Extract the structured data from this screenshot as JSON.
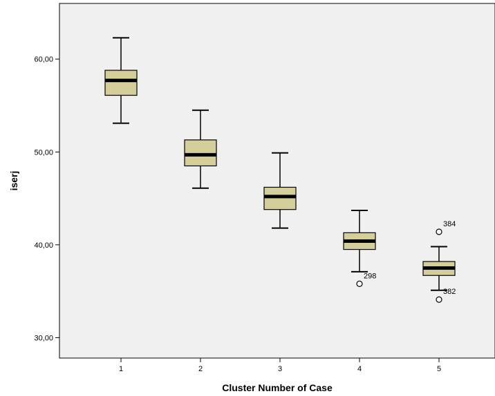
{
  "chart_data": {
    "type": "boxplot",
    "title": "",
    "xlabel": "Cluster Number of Case",
    "ylabel": "iserj",
    "ylim": [
      27.8,
      66.0
    ],
    "yticks": [
      30,
      40,
      50,
      60
    ],
    "ytick_labels": [
      "30,00",
      "40,00",
      "50,00",
      "60,00"
    ],
    "categories": [
      "1",
      "2",
      "3",
      "4",
      "5"
    ],
    "grid": false,
    "colors": {
      "plot_background": "#f0f0f0",
      "box_fill": "#d3ce9a",
      "stroke": "#000000"
    },
    "boxes": [
      {
        "category": "1",
        "whisker_low": 53.1,
        "q1": 56.1,
        "median": 57.7,
        "q3": 58.8,
        "whisker_high": 62.3,
        "outliers": []
      },
      {
        "category": "2",
        "whisker_low": 46.1,
        "q1": 48.5,
        "median": 49.7,
        "q3": 51.3,
        "whisker_high": 54.5,
        "outliers": []
      },
      {
        "category": "3",
        "whisker_low": 41.8,
        "q1": 43.8,
        "median": 45.2,
        "q3": 46.2,
        "whisker_high": 49.9,
        "outliers": []
      },
      {
        "category": "4",
        "whisker_low": 37.1,
        "q1": 39.5,
        "median": 40.4,
        "q3": 41.3,
        "whisker_high": 43.7,
        "outliers": [
          {
            "value": 35.8,
            "label": "298"
          }
        ]
      },
      {
        "category": "5",
        "whisker_low": 35.1,
        "q1": 36.7,
        "median": 37.5,
        "q3": 38.2,
        "whisker_high": 39.8,
        "outliers": [
          {
            "value": 41.4,
            "label": "384"
          },
          {
            "value": 34.1,
            "label": "382"
          }
        ]
      }
    ]
  }
}
